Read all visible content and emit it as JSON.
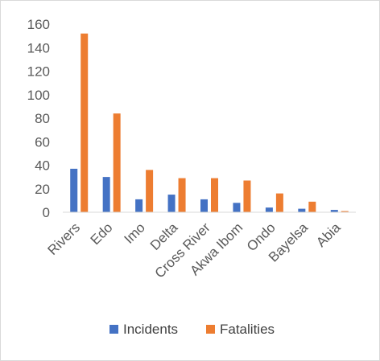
{
  "chart_data": {
    "type": "bar",
    "categories": [
      "Rivers",
      "Edo",
      "Imo",
      "Delta",
      "Cross River",
      "Akwa Ibom",
      "Ondo",
      "Bayelsa",
      "Abia"
    ],
    "series": [
      {
        "name": "Incidents",
        "color": "#4472C4",
        "values": [
          37,
          30,
          11,
          15,
          11,
          8,
          4,
          3,
          2
        ]
      },
      {
        "name": "Fatalities",
        "color": "#ED7D31",
        "values": [
          152,
          84,
          36,
          29,
          29,
          27,
          16,
          9,
          1
        ]
      }
    ],
    "yticks": [
      "0",
      "20",
      "40",
      "60",
      "80",
      "100",
      "120",
      "140",
      "160"
    ],
    "ylim": [
      0,
      160
    ],
    "legend": "bottom",
    "grid": false
  }
}
